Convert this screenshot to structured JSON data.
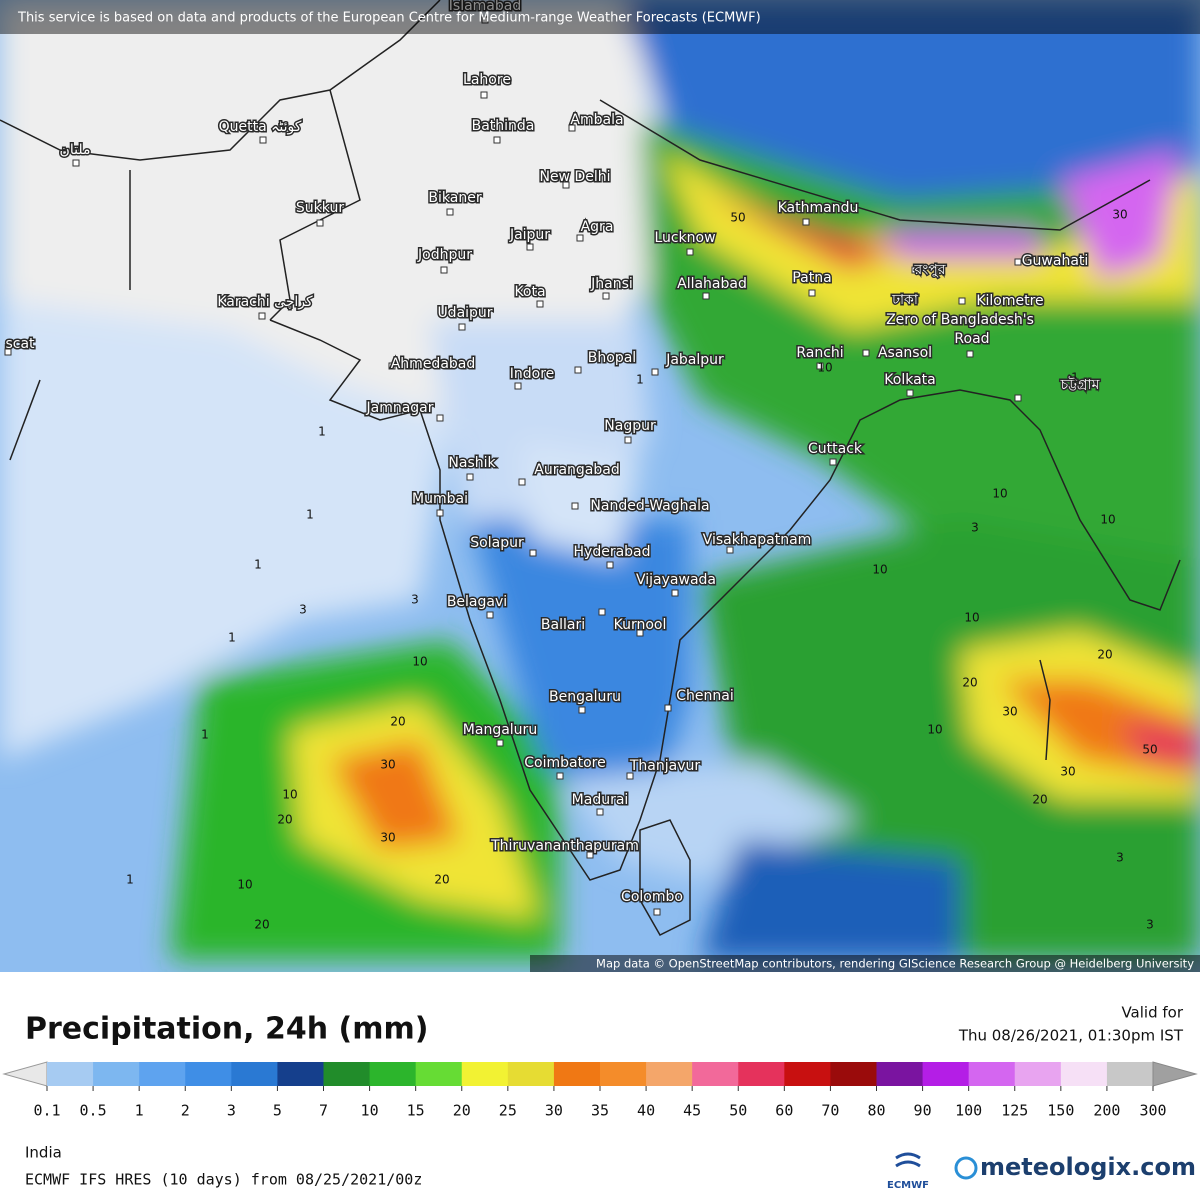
{
  "banner": "This service is based on data and products of the European Centre for Medium-range Weather Forecasts (ECMWF)",
  "cities": [
    "Islamabad",
    "Lahore",
    "Quetta کوئٹہ",
    "ملتان",
    "Bathinda",
    "Ambala",
    "New Delhi",
    "Bikaner",
    "Sukkur",
    "Jaipur",
    "Agra",
    "Lucknow",
    "Kathmandu",
    "Patna",
    "Jodhpur",
    "Karachi کراچی",
    "Kota",
    "Jhansi",
    "Allahabad",
    "Udaipur",
    "scat",
    "Ahmedabad",
    "Indore",
    "Bhopal",
    "Jabalpur",
    "Ranchi",
    "Asansol",
    "Kolkata",
    "Guwahati",
    "রংপুর",
    "ঢাকা",
    "Kilometre",
    "Zero of Bangladesh's",
    "Road",
    "চট্টগ্রাম",
    "Jamnagar",
    "Nagpur",
    "Cuttack",
    "Nashik",
    "Aurangabad",
    "Mumbai",
    "Nanded-Waghala",
    "Visakhapatnam",
    "Solapur",
    "Hyderabad",
    "Vijayawada",
    "Belagavi",
    "Ballari",
    "Kurnool",
    "Bengaluru",
    "Chennai",
    "Mangaluru",
    "Coimbatore",
    "Thanjavur",
    "Madurai",
    "Thiruvananthapuram",
    "Colombo"
  ],
  "contour_labels": [
    "1",
    "1",
    "1",
    "1",
    "1",
    "1",
    "1",
    "3",
    "3",
    "3",
    "3",
    "10",
    "10",
    "10",
    "10",
    "10",
    "10",
    "10",
    "10",
    "20",
    "20",
    "20",
    "20",
    "20",
    "20",
    "30",
    "30",
    "30",
    "30",
    "30",
    "50",
    "50",
    "10",
    "20",
    "3",
    "1"
  ],
  "attribution": "Map data © OpenStreetMap contributors, rendering GIScience Research Group @ Heidelberg University",
  "legend": {
    "title": "Precipitation, 24h (mm)",
    "valid_label": "Valid for",
    "valid_time": "Thu 08/26/2021, 01:30pm IST",
    "colorbar": {
      "ticks": [
        0.1,
        0.5,
        1,
        2,
        3,
        5,
        7,
        10,
        15,
        20,
        25,
        30,
        35,
        40,
        45,
        50,
        60,
        70,
        80,
        90,
        100,
        125,
        150,
        200,
        300
      ],
      "colors": [
        "#e8e8e8",
        "#a6cbf2",
        "#7db7f0",
        "#5ea3ef",
        "#3f8ee6",
        "#2a79d3",
        "#153f8c",
        "#218c2a",
        "#2cb52c",
        "#66dc34",
        "#f2f233",
        "#e6dc33",
        "#f07814",
        "#f48c2a",
        "#f4a66a",
        "#f2699a",
        "#e5325c",
        "#c81010",
        "#9a0b0b",
        "#7a14a0",
        "#b41ee6",
        "#d466f0",
        "#e8a4f0",
        "#f6e0f6",
        "#c8c8c8",
        "#a0a0a0"
      ]
    }
  },
  "footer": {
    "region": "India",
    "model": "ECMWF IFS HRES (10 days) from 08/25/2021/00z"
  },
  "logos": {
    "ecmwf": "ECMWF",
    "meteologix": "meteologix.com"
  }
}
